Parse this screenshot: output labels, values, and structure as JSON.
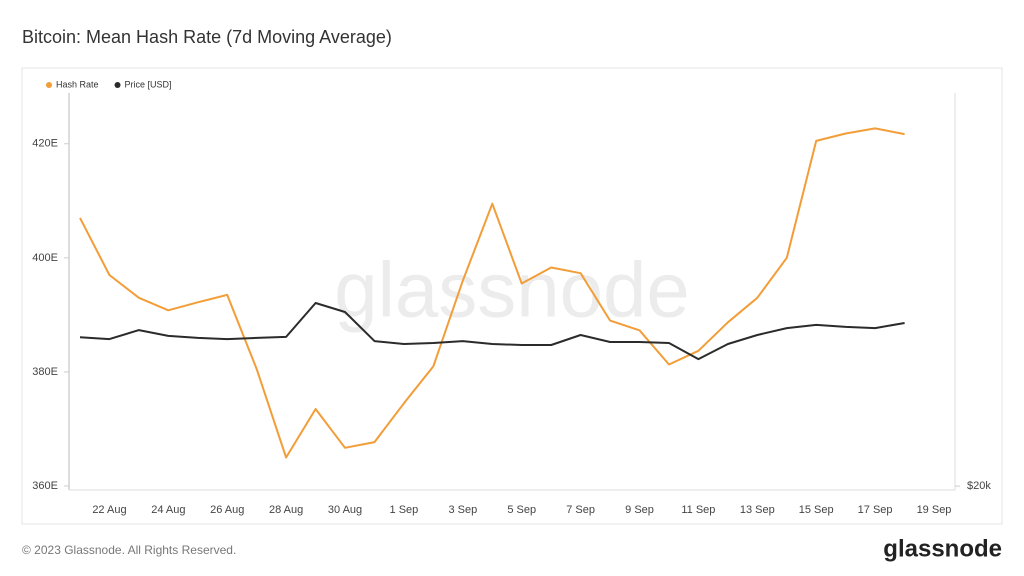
{
  "chart_data": {
    "type": "line",
    "title": "Bitcoin: Mean Hash Rate (7d Moving Average)",
    "watermark": "glassnode",
    "categories": [
      null,
      "22 Aug",
      null,
      "24 Aug",
      null,
      "26 Aug",
      null,
      "28 Aug",
      null,
      "30 Aug",
      null,
      "1 Sep",
      null,
      "3 Sep",
      null,
      "5 Sep",
      null,
      "7 Sep",
      null,
      "9 Sep",
      null,
      "11 Sep",
      null,
      "13 Sep",
      null,
      "15 Sep",
      null,
      "17 Sep",
      null,
      "19 Sep"
    ],
    "series": [
      {
        "name": "Hash Rate",
        "color": "#f29d38",
        "values": [
          407,
          397,
          393,
          390.8,
          392.2,
          393.5,
          380.5,
          365,
          373.5,
          366.7,
          367.7,
          374.5,
          381,
          396,
          409.5,
          395.5,
          398.3,
          397.3,
          389,
          387.3,
          381.3,
          383.7,
          388.7,
          393,
          400,
          420.5,
          421.8,
          422.7,
          421.7,
          null
        ]
      },
      {
        "name": "Price [USD]",
        "color": "#2b2b2b",
        "axis": "y2",
        "values": [
          26100,
          26020,
          26390,
          26150,
          26070,
          26020,
          26070,
          26110,
          27500,
          27130,
          25940,
          25820,
          25860,
          25940,
          25820,
          25780,
          25780,
          26190,
          25900,
          25900,
          25860,
          25200,
          25820,
          26190,
          26470,
          26600,
          26520,
          26470,
          26680,
          null
        ]
      }
    ],
    "ylim": [
      359.3,
      428.9
    ],
    "yticks": [
      {
        "value": 360,
        "label": "360E"
      },
      {
        "value": 380,
        "label": "380E"
      },
      {
        "value": 400,
        "label": "400E"
      },
      {
        "value": 420,
        "label": "420E"
      }
    ],
    "y2lim": [
      19840,
      36100
    ],
    "y2ticks": [
      {
        "value": 20000,
        "label": "$20k"
      }
    ],
    "grid": false,
    "legend": "top-left"
  },
  "footer": {
    "copyright": "© 2023 Glassnode. All Rights Reserved.",
    "logo": "glassnode"
  }
}
